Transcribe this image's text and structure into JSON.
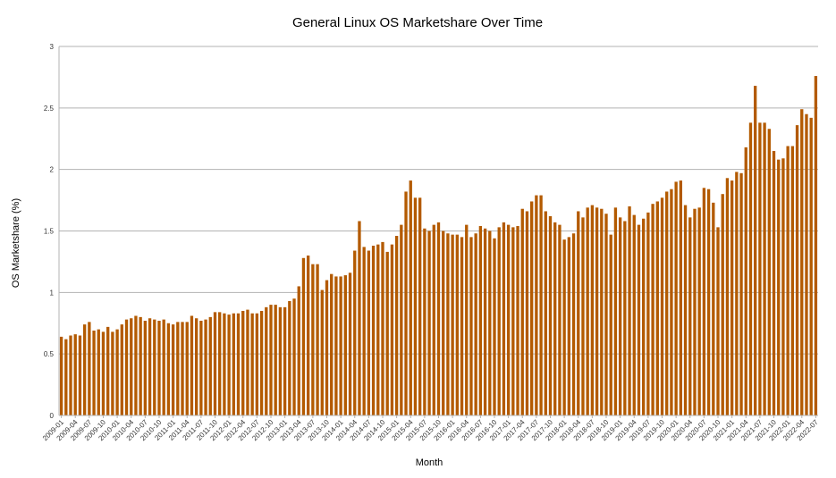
{
  "chart_data": {
    "type": "bar",
    "title": "General Linux OS Marketshare Over Time",
    "xlabel": "Month",
    "ylabel": "OS Marketshare (%)",
    "ylim": [
      0,
      3
    ],
    "yticks": [
      "0",
      "0.5",
      "1",
      "1.5",
      "2",
      "2.5",
      "3"
    ],
    "grid": true,
    "legend": "none",
    "bar_color": "#b35a00",
    "start_month": "2009-01",
    "xtick_labels": [
      "2009-01",
      "2009-04",
      "2009-07",
      "2009-10",
      "2010-01",
      "2010-04",
      "2010-07",
      "2010-10",
      "2011-01",
      "2011-04",
      "2011-07",
      "2011-10",
      "2012-01",
      "2012-04",
      "2012-07",
      "2012-10",
      "2013-01",
      "2013-04",
      "2013-07",
      "2013-10",
      "2014-01",
      "2014-04",
      "2014-07",
      "2014-10",
      "2015-01",
      "2015-04",
      "2015-07",
      "2015-10",
      "2016-01",
      "2016-04",
      "2016-07",
      "2016-10",
      "2017-01",
      "2017-04",
      "2017-07",
      "2017-10",
      "2018-01",
      "2018-04",
      "2018-07",
      "2018-10",
      "2019-01",
      "2019-04",
      "2019-07",
      "2019-10",
      "2020-01",
      "2020-04",
      "2020-07",
      "2020-10",
      "2021-01",
      "2021-04",
      "2021-07",
      "2021-10",
      "2022-01",
      "2022-04",
      "2022-07"
    ],
    "values": [
      0.64,
      0.62,
      0.65,
      0.66,
      0.65,
      0.74,
      0.76,
      0.69,
      0.7,
      0.68,
      0.72,
      0.68,
      0.7,
      0.74,
      0.78,
      0.79,
      0.81,
      0.8,
      0.77,
      0.79,
      0.78,
      0.77,
      0.78,
      0.75,
      0.74,
      0.76,
      0.76,
      0.76,
      0.81,
      0.79,
      0.77,
      0.78,
      0.8,
      0.84,
      0.84,
      0.83,
      0.82,
      0.83,
      0.83,
      0.85,
      0.86,
      0.83,
      0.83,
      0.85,
      0.88,
      0.9,
      0.9,
      0.88,
      0.88,
      0.93,
      0.95,
      1.05,
      1.28,
      1.3,
      1.23,
      1.23,
      1.02,
      1.1,
      1.15,
      1.13,
      1.13,
      1.14,
      1.16,
      1.34,
      1.58,
      1.37,
      1.34,
      1.38,
      1.39,
      1.41,
      1.33,
      1.39,
      1.46,
      1.55,
      1.82,
      1.91,
      1.77,
      1.77,
      1.52,
      1.5,
      1.55,
      1.57,
      1.5,
      1.48,
      1.47,
      1.47,
      1.45,
      1.55,
      1.45,
      1.48,
      1.54,
      1.52,
      1.5,
      1.44,
      1.53,
      1.57,
      1.55,
      1.53,
      1.54,
      1.68,
      1.66,
      1.74,
      1.79,
      1.79,
      1.66,
      1.62,
      1.57,
      1.55,
      1.43,
      1.45,
      1.48,
      1.66,
      1.61,
      1.69,
      1.71,
      1.69,
      1.68,
      1.64,
      1.47,
      1.69,
      1.61,
      1.58,
      1.7,
      1.63,
      1.55,
      1.6,
      1.65,
      1.72,
      1.74,
      1.77,
      1.82,
      1.84,
      1.9,
      1.91,
      1.71,
      1.61,
      1.68,
      1.69,
      1.85,
      1.84,
      1.73,
      1.53,
      1.8,
      1.93,
      1.91,
      1.98,
      1.97,
      2.18,
      2.38,
      2.68,
      2.38,
      2.38,
      2.33,
      2.15,
      2.08,
      2.09,
      2.19,
      2.19,
      2.36,
      2.49,
      2.45,
      2.42,
      2.76
    ]
  }
}
